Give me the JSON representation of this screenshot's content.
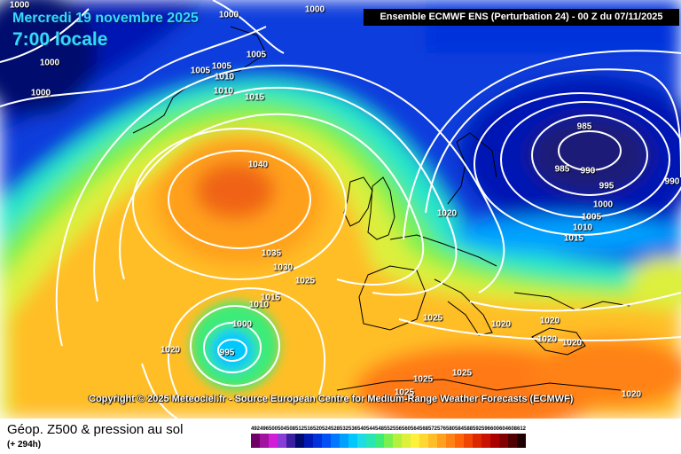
{
  "header": {
    "date": "Mercredi 19 novembre 2025",
    "time": "7:00 locale"
  },
  "model_banner": "Ensemble ECMWF ENS  (Perturbation 24)  -  00 Z du 07/11/2025",
  "copyright": "Copyright © 2025 Meteociel.fr - Source European Centre for Medium-Range Weather Forecasts (ECMWF)",
  "footer": {
    "product": "Géop. Z500 & pression au sol",
    "lead": "(+ 294h)"
  },
  "isobar_labels": [
    "1000",
    "1000",
    "1000",
    "1000",
    "1000",
    "1005",
    "1005",
    "1005",
    "1010",
    "1010",
    "1015",
    "1040",
    "1035",
    "1030",
    "1025",
    "1015",
    "1010",
    "1000",
    "995",
    "1020",
    "985",
    "985",
    "990",
    "995",
    "990",
    "1000",
    "1005",
    "1010",
    "1015",
    "1020",
    "1025",
    "1025",
    "1020",
    "1020",
    "1020",
    "1020",
    "1025",
    "1020",
    "1025"
  ],
  "legend": {
    "values": [
      "492",
      "496",
      "500",
      "504",
      "508",
      "512",
      "516",
      "520",
      "524",
      "528",
      "532",
      "536",
      "540",
      "544",
      "548",
      "552",
      "556",
      "560",
      "564",
      "568",
      "572",
      "576",
      "580",
      "584",
      "588",
      "592",
      "596",
      "600",
      "604",
      "608",
      "612"
    ],
    "colors": [
      "#6e0066",
      "#a0149f",
      "#d21ed8",
      "#8a3cd6",
      "#3c1ea0",
      "#000a6e",
      "#0018b4",
      "#0032dc",
      "#0050f5",
      "#0078ff",
      "#00a0ff",
      "#00c8ff",
      "#1edce6",
      "#28e6b4",
      "#3ceb78",
      "#78f050",
      "#b4f03c",
      "#dcf03c",
      "#fff03c",
      "#ffd732",
      "#ffbe28",
      "#ffa01e",
      "#ff8214",
      "#ff640a",
      "#f04605",
      "#dc2800",
      "#c81400",
      "#aa0000",
      "#820000",
      "#500000",
      "#1e0000"
    ]
  },
  "colors": {
    "deep_low": "#1e1e78",
    "ocean_blue": "#0a3ce0",
    "high_core": "#f07814"
  }
}
